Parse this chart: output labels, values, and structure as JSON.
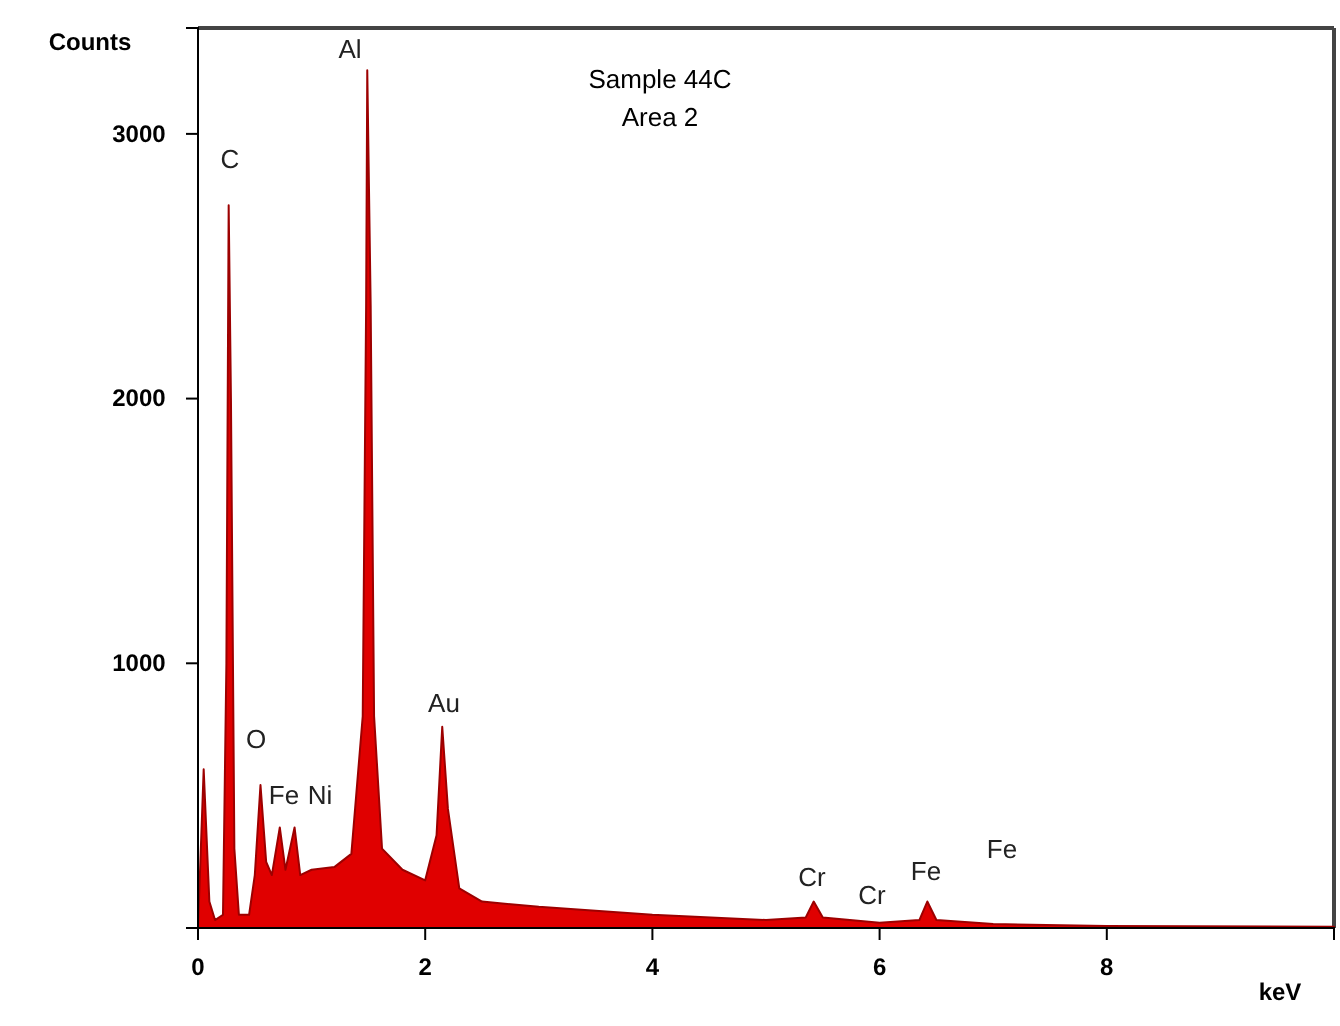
{
  "chart_data": {
    "type": "area",
    "title": "Sample 44C",
    "subtitle": "Area 2",
    "xlabel": "keV",
    "ylabel": "Counts",
    "xlim": [
      0,
      10
    ],
    "ylim": [
      0,
      3400
    ],
    "xticks": [
      0,
      2,
      4,
      6,
      8
    ],
    "yticks": [
      1000,
      2000,
      3000
    ],
    "grid": false,
    "series": [
      {
        "color": "#e00000",
        "x": [
          0,
          0.05,
          0.1,
          0.15,
          0.22,
          0.25,
          0.27,
          0.29,
          0.32,
          0.36,
          0.45,
          0.5,
          0.55,
          0.6,
          0.65,
          0.72,
          0.77,
          0.85,
          0.9,
          1.0,
          1.2,
          1.35,
          1.45,
          1.48,
          1.49,
          1.52,
          1.55,
          1.62,
          1.8,
          2.0,
          2.1,
          2.15,
          2.2,
          2.3,
          2.5,
          3,
          4,
          5,
          5.35,
          5.42,
          5.5,
          6,
          6.35,
          6.42,
          6.5,
          7,
          8,
          10
        ],
        "values": [
          0,
          600,
          100,
          30,
          50,
          1000,
          2730,
          2000,
          300,
          50,
          50,
          200,
          540,
          250,
          200,
          380,
          220,
          380,
          200,
          220,
          230,
          280,
          800,
          2350,
          3240,
          2350,
          800,
          300,
          220,
          180,
          350,
          760,
          450,
          150,
          100,
          80,
          50,
          30,
          40,
          100,
          40,
          20,
          30,
          100,
          30,
          15,
          8,
          5
        ]
      }
    ],
    "annotations": [
      "C",
      "Al",
      "Au",
      "O",
      "Fe",
      "Ni",
      "Cr",
      "Cr",
      "Fe",
      "Fe"
    ]
  }
}
